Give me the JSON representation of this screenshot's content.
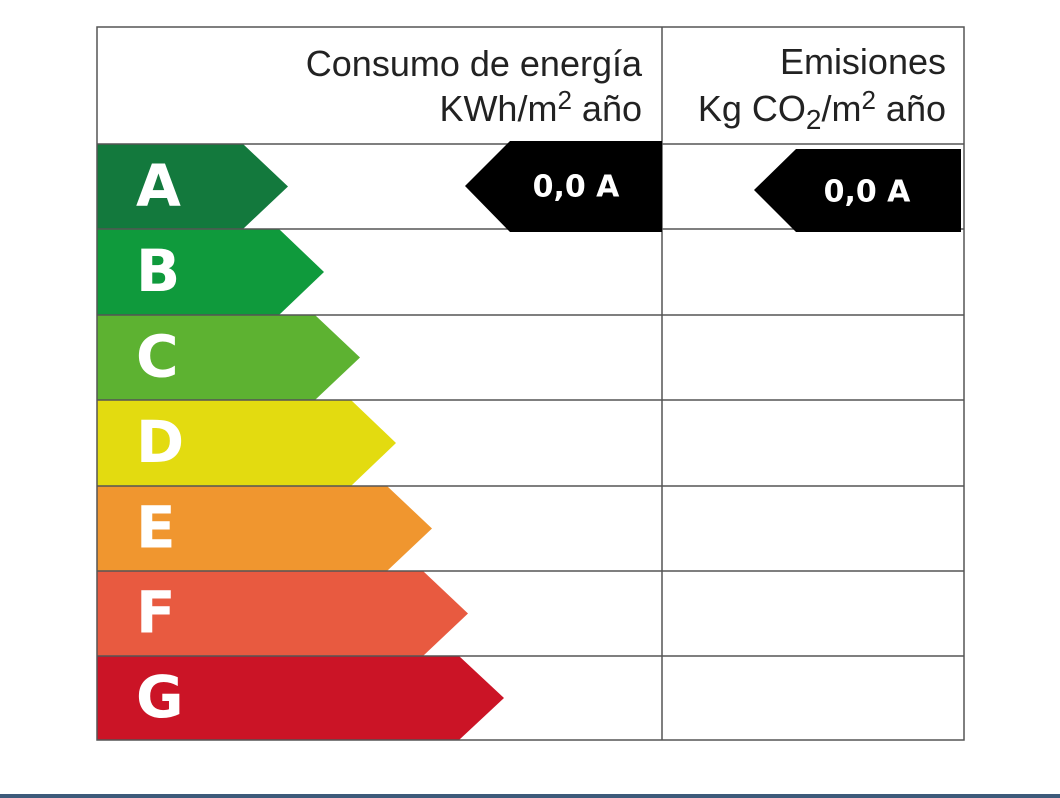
{
  "header": {
    "consumption_title": "Consumo de energía",
    "consumption_unit": [
      "KWh/m",
      "2",
      " año"
    ],
    "emissions_title": "Emisiones",
    "emissions_unit": [
      "Kg CO",
      "2",
      "/m",
      "2",
      " año"
    ]
  },
  "classes": [
    "A",
    "B",
    "C",
    "D",
    "E",
    "F",
    "G"
  ],
  "ratings": {
    "consumption": "0,0 A",
    "emissions": "0,0 A"
  }
}
